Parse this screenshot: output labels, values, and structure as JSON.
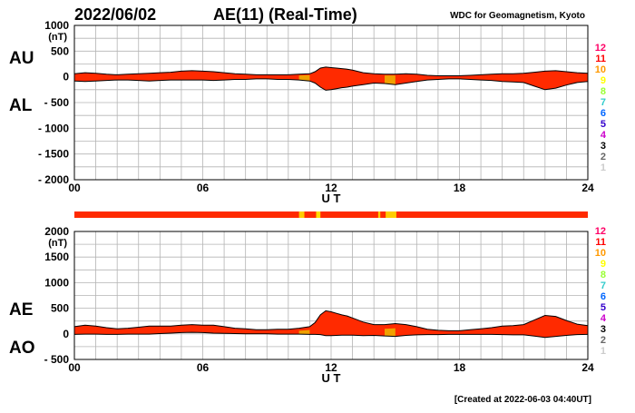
{
  "header": {
    "date": "2022/06/02",
    "title": "AE(11) (Real-Time)",
    "source": "WDC for Geomagnetism, Kyoto"
  },
  "footer": {
    "created": "[Created at 2022-06-03 04:40UT]"
  },
  "colors": {
    "fill_main": "#ff2a00",
    "fill_alt": "#f0a000",
    "outline": "#000000",
    "grid": "#b4b4b4"
  },
  "legend": {
    "labels": [
      "12",
      "11",
      "10",
      "9",
      "8",
      "7",
      "6",
      "5",
      "4",
      "3",
      "2",
      "1"
    ],
    "colors": [
      "#ff0066",
      "#ff0000",
      "#ff9900",
      "#ffff00",
      "#99ff33",
      "#33cccc",
      "#0066ff",
      "#3300cc",
      "#cc00cc",
      "#000000",
      "#666666",
      "#cccccc"
    ]
  },
  "station_bar": {
    "base_color": "#ff2a00",
    "segments": [
      {
        "t0": 10.5,
        "t1": 10.75,
        "color": "#ffcc00"
      },
      {
        "t0": 11.3,
        "t1": 11.5,
        "color": "#ffdd00"
      },
      {
        "t0": 14.2,
        "t1": 14.3,
        "color": "#ffcc00"
      },
      {
        "t0": 14.55,
        "t1": 15.05,
        "color": "#ffcc00"
      }
    ]
  },
  "chart_data": [
    {
      "type": "area",
      "name": "AU/AL",
      "left_labels": [
        "AU",
        "AL"
      ],
      "ylabel": "(nT)",
      "xlabel": "U T",
      "xlim": [
        0,
        24
      ],
      "ylim": [
        -2000,
        1000
      ],
      "yticks": [
        1000,
        500,
        0,
        -500,
        -1000,
        -1500,
        -2000
      ],
      "ytick_labels": [
        "1000",
        "500",
        "0",
        "- 500",
        "- 1000",
        "- 1500",
        "- 2000"
      ],
      "xticks": [
        0,
        6,
        12,
        18,
        24
      ],
      "xtick_labels": [
        "00",
        "06",
        "12",
        "18",
        "24"
      ],
      "grid": true,
      "x": [
        0,
        0.5,
        1,
        1.5,
        2,
        2.5,
        3,
        3.5,
        4,
        4.5,
        5,
        5.5,
        6,
        6.5,
        7,
        7.5,
        8,
        8.5,
        9,
        9.5,
        10,
        10.5,
        11,
        11.25,
        11.5,
        11.75,
        12,
        12.25,
        12.5,
        12.75,
        13,
        13.5,
        14,
        14.5,
        15,
        15.5,
        16,
        16.5,
        17,
        17.5,
        18,
        18.5,
        19,
        19.5,
        20,
        20.5,
        21,
        21.5,
        22,
        22.5,
        23,
        23.5,
        24
      ],
      "series": [
        {
          "label": "AU",
          "values": [
            60,
            80,
            70,
            50,
            40,
            50,
            60,
            70,
            80,
            90,
            110,
            120,
            110,
            100,
            80,
            60,
            50,
            40,
            40,
            40,
            40,
            50,
            60,
            100,
            170,
            190,
            180,
            170,
            160,
            150,
            130,
            80,
            60,
            50,
            50,
            60,
            50,
            30,
            20,
            20,
            20,
            30,
            40,
            50,
            60,
            60,
            70,
            90,
            110,
            120,
            100,
            80,
            70
          ]
        },
        {
          "label": "AL",
          "values": [
            -80,
            -90,
            -80,
            -70,
            -60,
            -60,
            -70,
            -80,
            -70,
            -60,
            -60,
            -60,
            -60,
            -70,
            -60,
            -50,
            -50,
            -40,
            -40,
            -50,
            -50,
            -60,
            -80,
            -120,
            -200,
            -260,
            -250,
            -230,
            -210,
            -200,
            -180,
            -150,
            -120,
            -130,
            -150,
            -120,
            -90,
            -60,
            -50,
            -40,
            -40,
            -50,
            -60,
            -70,
            -90,
            -100,
            -110,
            -180,
            -250,
            -220,
            -160,
            -110,
            -90
          ]
        }
      ]
    },
    {
      "type": "area",
      "name": "AE/AO",
      "left_labels": [
        "AE",
        "AO"
      ],
      "ylabel": "(nT)",
      "xlabel": "U T",
      "xlim": [
        0,
        24
      ],
      "ylim": [
        -500,
        2000
      ],
      "yticks": [
        2000,
        1500,
        1000,
        500,
        0,
        -500
      ],
      "ytick_labels": [
        "2000",
        "1500",
        "1000",
        "500",
        "0",
        "- 500"
      ],
      "xticks": [
        0,
        6,
        12,
        18,
        24
      ],
      "xtick_labels": [
        "00",
        "06",
        "12",
        "18",
        "24"
      ],
      "grid": true,
      "x": [
        0,
        0.5,
        1,
        1.5,
        2,
        2.5,
        3,
        3.5,
        4,
        4.5,
        5,
        5.5,
        6,
        6.5,
        7,
        7.5,
        8,
        8.5,
        9,
        9.5,
        10,
        10.5,
        11,
        11.25,
        11.5,
        11.75,
        12,
        12.25,
        12.5,
        12.75,
        13,
        13.5,
        14,
        14.5,
        15,
        15.5,
        16,
        16.5,
        17,
        17.5,
        18,
        18.5,
        19,
        19.5,
        20,
        20.5,
        21,
        21.5,
        22,
        22.5,
        23,
        23.5,
        24
      ],
      "series": [
        {
          "label": "AE",
          "values": [
            140,
            170,
            150,
            120,
            100,
            110,
            130,
            150,
            150,
            150,
            170,
            180,
            170,
            170,
            140,
            110,
            100,
            80,
            80,
            90,
            90,
            110,
            140,
            220,
            370,
            450,
            430,
            400,
            370,
            350,
            310,
            230,
            180,
            180,
            200,
            180,
            140,
            90,
            70,
            60,
            60,
            80,
            100,
            120,
            150,
            160,
            180,
            270,
            360,
            340,
            260,
            190,
            160
          ]
        },
        {
          "label": "AO",
          "values": [
            -10,
            -5,
            -5,
            -10,
            -10,
            -5,
            -5,
            -5,
            5,
            15,
            25,
            30,
            25,
            15,
            10,
            5,
            0,
            0,
            0,
            -5,
            -5,
            -5,
            -10,
            -10,
            -15,
            -35,
            -35,
            -30,
            -25,
            -25,
            -25,
            -35,
            -30,
            -40,
            -50,
            -30,
            -20,
            -15,
            -15,
            -10,
            -10,
            -10,
            -10,
            -10,
            -15,
            -20,
            -20,
            -45,
            -70,
            -50,
            -30,
            -15,
            -10
          ]
        }
      ]
    }
  ]
}
